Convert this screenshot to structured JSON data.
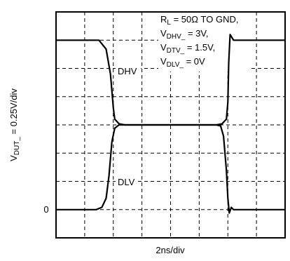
{
  "chart_data": {
    "type": "line",
    "xlabel": "2ns/div",
    "ylabel_main": "V",
    "ylabel_sub": "DUT_",
    "ylabel_rest": " = 0.25V/div",
    "zero_label": "0",
    "xlim": [
      0,
      8
    ],
    "ylim": [
      -0.25,
      1.75
    ],
    "grid": true,
    "grid_divisions": {
      "x": 8,
      "y": 8
    },
    "annotation_lines": [
      {
        "key": "rl",
        "main": "R",
        "sub": "L",
        "rest": " = 50Ω TO GND,"
      },
      {
        "key": "vdhv",
        "main": "V",
        "sub": "DHV_",
        "rest": " = 3V,"
      },
      {
        "key": "vdtv",
        "main": "V",
        "sub": "DTV_",
        "rest": " = 1.5V,"
      },
      {
        "key": "vdlv",
        "main": "V",
        "sub": "DLV_",
        "rest": " = 0V"
      }
    ],
    "series": [
      {
        "name": "DHV",
        "x": [
          0,
          1.5,
          1.75,
          1.9,
          2.0,
          2.05,
          2.2,
          2.4,
          5.6,
          5.8,
          5.95,
          6.0,
          6.03,
          6.08,
          6.2,
          6.4,
          8.0
        ],
        "y": [
          1.5,
          1.5,
          1.42,
          1.2,
          0.9,
          0.8,
          0.76,
          0.75,
          0.75,
          0.76,
          0.8,
          0.95,
          1.3,
          1.55,
          1.5,
          1.5,
          1.5
        ]
      },
      {
        "name": "DLV",
        "x": [
          0,
          1.4,
          1.6,
          1.75,
          1.85,
          1.95,
          2.05,
          2.2,
          2.4,
          5.6,
          5.75,
          5.85,
          5.95,
          6.0,
          6.05,
          6.12,
          6.2,
          6.4,
          8.0
        ],
        "y": [
          0,
          0,
          0.02,
          0.1,
          0.3,
          0.6,
          0.72,
          0.75,
          0.75,
          0.75,
          0.74,
          0.65,
          0.35,
          0.1,
          -0.03,
          0.02,
          0,
          0,
          0
        ]
      }
    ],
    "trace_labels": [
      "DHV",
      "DLV"
    ]
  }
}
